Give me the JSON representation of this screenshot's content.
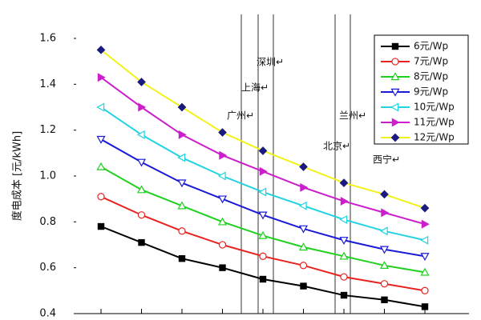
{
  "chart_data": {
    "type": "line",
    "y_label": "度电成本 [元/kWh]",
    "categories": [
      null,
      null,
      null,
      null,
      null,
      null,
      null,
      null,
      null
    ],
    "series": [
      {
        "name": "6元/Wp",
        "color": "#000000",
        "marker": "square",
        "values": [
          0.78,
          0.71,
          0.64,
          0.6,
          0.55,
          0.52,
          0.48,
          0.46,
          0.43
        ]
      },
      {
        "name": "7元/Wp",
        "color": "#e8231f",
        "marker": "circle",
        "values": [
          0.91,
          0.83,
          0.76,
          0.7,
          0.65,
          0.61,
          0.56,
          0.53,
          0.5
        ]
      },
      {
        "name": "8元/Wp",
        "color": "#1fd11f",
        "marker": "triangle-up",
        "values": [
          1.04,
          0.94,
          0.87,
          0.8,
          0.74,
          0.69,
          0.65,
          0.61,
          0.58
        ]
      },
      {
        "name": "9元/Wp",
        "color": "#1a1ad6",
        "marker": "triangle-down",
        "values": [
          1.16,
          1.06,
          0.97,
          0.9,
          0.83,
          0.77,
          0.72,
          0.68,
          0.65
        ]
      },
      {
        "name": "10元/Wp",
        "color": "#22d3e0",
        "marker": "triangle-left",
        "values": [
          1.3,
          1.18,
          1.08,
          1.0,
          0.93,
          0.87,
          0.81,
          0.76,
          0.72
        ]
      },
      {
        "name": "11元/Wp",
        "color": "#cc1fcc",
        "marker": "triangle-right",
        "values": [
          1.43,
          1.3,
          1.18,
          1.09,
          1.02,
          0.95,
          0.89,
          0.84,
          0.79
        ]
      },
      {
        "name": "12元/Wp",
        "color": "#f2f21a",
        "marker": "diamond",
        "values": [
          1.55,
          1.41,
          1.3,
          1.19,
          1.11,
          1.04,
          0.97,
          0.92,
          0.86
        ]
      }
    ],
    "ylim": [
      0.4,
      1.6
    ],
    "yticks": [
      0.4,
      0.6,
      0.8,
      {
        "value": 1,
        "label": "1.0"
      },
      1.2,
      1.4,
      1.6
    ],
    "annotations": [
      "深圳↵",
      "上海↵",
      "广州↵",
      "兰州↵",
      "北京↵",
      "西宁↵"
    ],
    "legend": "upper right"
  }
}
